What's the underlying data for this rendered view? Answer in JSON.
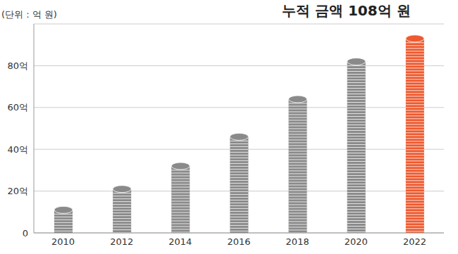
{
  "chart_data": {
    "type": "bar",
    "title": "누적 금액 108억 원",
    "subtitle": "(단위 : 억 원)",
    "categories": [
      "2010",
      "2012",
      "2014",
      "2016",
      "2018",
      "2020",
      "2022"
    ],
    "values": [
      11,
      21,
      32,
      46,
      64,
      82,
      93
    ],
    "colors": [
      "#8a8a8a",
      "#8a8a8a",
      "#8a8a8a",
      "#8a8a8a",
      "#8a8a8a",
      "#8a8a8a",
      "#ee5a2f"
    ],
    "ylim": [
      0,
      100
    ],
    "yticks": [
      0,
      {
        "value": 20,
        "label": "20억"
      },
      {
        "value": 40,
        "label": "40억"
      },
      {
        "value": 60,
        "label": "60억"
      },
      {
        "value": 80,
        "label": "80억"
      }
    ],
    "grid": true
  }
}
